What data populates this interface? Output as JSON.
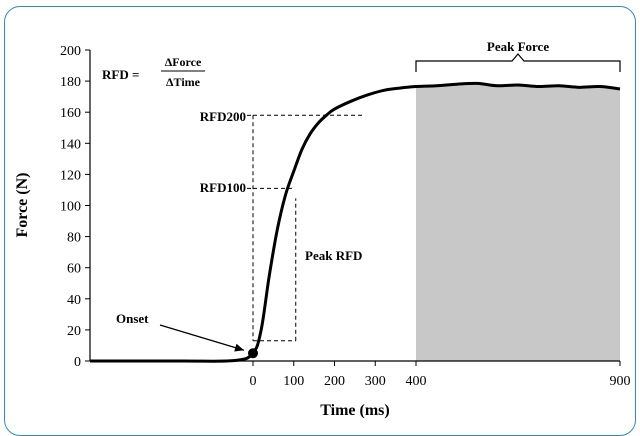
{
  "chart_data": {
    "type": "line",
    "xlabel": "Time (ms)",
    "ylabel": "Force (N)",
    "ylim": [
      0,
      200
    ],
    "yticks": [
      0,
      20,
      40,
      60,
      80,
      100,
      120,
      140,
      160,
      180,
      200
    ],
    "xticks": [
      0,
      100,
      200,
      300,
      400,
      900
    ],
    "xrange": [
      -450,
      900
    ],
    "grid": false,
    "series": [
      {
        "x": [
          -450,
          -200,
          -50,
          0,
          20,
          40,
          60,
          80,
          100,
          120,
          140,
          160,
          180,
          200,
          240,
          280,
          320,
          360,
          400,
          450,
          500,
          550,
          600,
          650,
          700,
          750,
          800,
          850,
          900
        ],
        "y": [
          0,
          0,
          0.3,
          5,
          20,
          55,
          85,
          107,
          122,
          136,
          146,
          153,
          158,
          162,
          167,
          171,
          174,
          175.5,
          176.5,
          177,
          178,
          178.5,
          177,
          177.5,
          176.5,
          177,
          176,
          176.5,
          175
        ]
      }
    ],
    "onset": {
      "x": 0,
      "y": 5
    },
    "rfd_window": {
      "x0": 0,
      "x100": 100,
      "x200": 200,
      "y_base": 13,
      "y100": 111,
      "y200": 158
    },
    "peak_region": {
      "x0": 400,
      "x1": 900,
      "color": "#c8c8c8"
    },
    "annotations": {
      "formula_lhs": "RFD =",
      "formula_num": "ΔForce",
      "formula_den": "ΔTime",
      "peak_force": "Peak Force",
      "rfd200": "RFD200",
      "rfd100": "RFD100",
      "peak_rfd": "Peak RFD",
      "onset": "Onset"
    }
  }
}
